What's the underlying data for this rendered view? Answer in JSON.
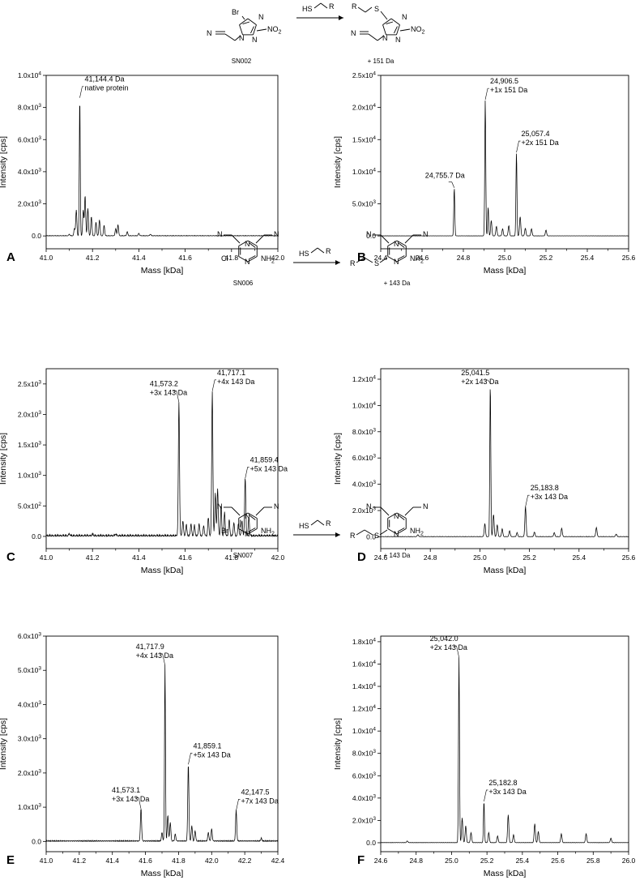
{
  "reagent_label": "HS",
  "r_label": "R",
  "schemes": [
    {
      "compound": "SN002",
      "product_shift": "+ 151 Da",
      "reactant_atoms": [
        "Br",
        "N",
        "N",
        "N",
        "N",
        "NO2"
      ],
      "product_atoms": [
        "R",
        "S",
        "N",
        "N",
        "N",
        "N",
        "NO2"
      ]
    },
    {
      "compound": "SN006",
      "product_shift": "+ 143 Da",
      "reactant_atoms": [
        "N",
        "N",
        "N",
        "N",
        "Cl",
        "NH2"
      ],
      "product_atoms": [
        "N",
        "N",
        "N",
        "N",
        "R",
        "S",
        "NH2"
      ]
    },
    {
      "compound": "SN007",
      "product_shift": "+ 143 Da",
      "reactant_atoms": [
        "N",
        "N",
        "N",
        "N",
        "Br",
        "NH2"
      ],
      "product_atoms": [
        "N",
        "N",
        "N",
        "N",
        "R",
        "S",
        "NH2"
      ]
    }
  ],
  "chart_data": [
    {
      "panel": "A",
      "type": "line",
      "xlabel": "Mass [kDa]",
      "ylabel": "Intensity [cps]",
      "xlim": [
        41.0,
        42.0
      ],
      "ylim": [
        -800,
        10000
      ],
      "xticks": [
        "41.0",
        "41.2",
        "41.4",
        "41.6",
        "41.8",
        "42.0"
      ],
      "yticks": [
        "0.0",
        "2.0x10³",
        "4.0x10³",
        "6.0x10³",
        "8.0x10³",
        "1.0x10⁴"
      ],
      "peaks": [
        [
          41.1,
          90
        ],
        [
          41.122,
          450
        ],
        [
          41.13,
          1600
        ],
        [
          41.145,
          8600
        ],
        [
          41.16,
          1600
        ],
        [
          41.168,
          2500
        ],
        [
          41.18,
          1700
        ],
        [
          41.195,
          1200
        ],
        [
          41.215,
          850
        ],
        [
          41.23,
          1000
        ],
        [
          41.25,
          650
        ],
        [
          41.3,
          450
        ],
        [
          41.31,
          700
        ],
        [
          41.35,
          250
        ],
        [
          41.4,
          150
        ],
        [
          41.45,
          100
        ]
      ],
      "annotations": [
        {
          "lines": [
            "41,144.4 Da",
            "native protein"
          ],
          "x": 41.145,
          "y": 8600
        }
      ]
    },
    {
      "panel": "B",
      "type": "line",
      "xlabel": "Mass [kDa]",
      "ylabel": "Intensity [cps]",
      "xlim": [
        24.4,
        25.6
      ],
      "ylim": [
        -2000,
        25000
      ],
      "xticks": [
        "24.4",
        "24.6",
        "24.8",
        "25.0",
        "25.2",
        "25.4",
        "25.6"
      ],
      "yticks": [
        "0.0",
        "5.0x10³",
        "1.0x10⁴",
        "1.5x10⁴",
        "2.0x10⁴",
        "2.5x10⁴"
      ],
      "peaks": [
        [
          24.756,
          7500
        ],
        [
          24.906,
          21200
        ],
        [
          24.92,
          4500
        ],
        [
          24.935,
          2400
        ],
        [
          24.96,
          1500
        ],
        [
          24.99,
          1100
        ],
        [
          25.02,
          1600
        ],
        [
          25.057,
          13000
        ],
        [
          25.075,
          3000
        ],
        [
          25.1,
          1200
        ],
        [
          25.13,
          1100
        ],
        [
          25.2,
          900
        ]
      ],
      "annotations": [
        {
          "lines": [
            "24,755.7 Da"
          ],
          "x": 24.756,
          "y": 7500
        },
        {
          "lines": [
            "24,906.5",
            "+1x 151 Da"
          ],
          "x": 24.906,
          "y": 21200
        },
        {
          "lines": [
            "25,057.4",
            "+2x 151 Da"
          ],
          "x": 25.057,
          "y": 13000
        }
      ]
    },
    {
      "panel": "C",
      "type": "line",
      "xlabel": "Mass [kDa]",
      "ylabel": "Intensity [cps]",
      "xlim": [
        41.0,
        42.0
      ],
      "ylim": [
        -200,
        2750
      ],
      "xticks": [
        "41.0",
        "41.2",
        "41.4",
        "41.6",
        "41.8",
        "42.0"
      ],
      "yticks": [
        "0.0",
        "5.0x10²",
        "1.0x10³",
        "1.5x10³",
        "2.0x10³",
        "2.5x10³"
      ],
      "peaks": [
        [
          41.1,
          30
        ],
        [
          41.2,
          30
        ],
        [
          41.3,
          30
        ],
        [
          41.573,
          2200
        ],
        [
          41.59,
          250
        ],
        [
          41.605,
          180
        ],
        [
          41.625,
          200
        ],
        [
          41.64,
          170
        ],
        [
          41.66,
          200
        ],
        [
          41.68,
          170
        ],
        [
          41.7,
          300
        ],
        [
          41.717,
          2380
        ],
        [
          41.73,
          700
        ],
        [
          41.74,
          780
        ],
        [
          41.755,
          500
        ],
        [
          41.77,
          380
        ],
        [
          41.79,
          260
        ],
        [
          41.81,
          220
        ],
        [
          41.83,
          200
        ],
        [
          41.845,
          250
        ],
        [
          41.859,
          950
        ],
        [
          41.875,
          300
        ]
      ],
      "annotations": [
        {
          "lines": [
            "41,573.2",
            "+3x 143 Da"
          ],
          "x": 41.573,
          "y": 2200
        },
        {
          "lines": [
            "41,717.1",
            "+4x 143 Da"
          ],
          "x": 41.717,
          "y": 2380
        },
        {
          "lines": [
            "41,859.4",
            "+5x 143 Da"
          ],
          "x": 41.859,
          "y": 950
        }
      ]
    },
    {
      "panel": "D",
      "type": "line",
      "xlabel": "Mass [kDa]",
      "ylabel": "Intensity [cps]",
      "xlim": [
        24.6,
        25.6
      ],
      "ylim": [
        -900,
        12800
      ],
      "xticks": [
        "24.6",
        "24.8",
        "25.0",
        "25.2",
        "25.4",
        "25.6"
      ],
      "yticks": [
        "0.0",
        "2.0x10³",
        "4.0x10³",
        "6.0x10³",
        "8.0x10³",
        "1.0x10⁴",
        "1.2x10⁴"
      ],
      "peaks": [
        [
          24.75,
          150
        ],
        [
          25.02,
          1000
        ],
        [
          25.042,
          11700
        ],
        [
          25.055,
          1700
        ],
        [
          25.07,
          900
        ],
        [
          25.09,
          600
        ],
        [
          25.12,
          450
        ],
        [
          25.15,
          300
        ],
        [
          25.184,
          2300
        ],
        [
          25.22,
          350
        ],
        [
          25.3,
          300
        ],
        [
          25.33,
          650
        ],
        [
          25.47,
          700
        ],
        [
          25.55,
          200
        ]
      ],
      "annotations": [
        {
          "lines": [
            "25,041.5",
            "+2x 143 Da"
          ],
          "x": 25.042,
          "y": 11700
        },
        {
          "lines": [
            "25,183.8",
            "+3x 143 Da"
          ],
          "x": 25.184,
          "y": 2300
        }
      ]
    },
    {
      "panel": "E",
      "type": "line",
      "xlabel": "Mass [kDa]",
      "ylabel": "Intensity [cps]",
      "xlim": [
        41.0,
        42.4
      ],
      "ylim": [
        -300,
        6000
      ],
      "xticks": [
        "41.0",
        "41.2",
        "41.4",
        "41.6",
        "41.8",
        "42.0",
        "42.2",
        "42.4"
      ],
      "yticks": [
        "0.0",
        "1.0x10³",
        "2.0x10³",
        "3.0x10³",
        "4.0x10³",
        "5.0x10³",
        "6.0x10³"
      ],
      "peaks": [
        [
          41.573,
          950
        ],
        [
          41.7,
          250
        ],
        [
          41.718,
          5150
        ],
        [
          41.735,
          750
        ],
        [
          41.75,
          550
        ],
        [
          41.78,
          200
        ],
        [
          41.859,
          2250
        ],
        [
          41.88,
          450
        ],
        [
          41.9,
          300
        ],
        [
          41.98,
          250
        ],
        [
          42.0,
          350
        ],
        [
          42.148,
          900
        ],
        [
          42.3,
          80
        ]
      ],
      "annotations": [
        {
          "lines": [
            "41,573.1",
            "+3x 143 Da"
          ],
          "x": 41.573,
          "y": 950
        },
        {
          "lines": [
            "41,717.9",
            "+4x 143 Da"
          ],
          "x": 41.718,
          "y": 5150
        },
        {
          "lines": [
            "41,859.1",
            "+5x 143 Da"
          ],
          "x": 41.859,
          "y": 2250
        },
        {
          "lines": [
            "42,147.5",
            "+7x 143 Da"
          ],
          "x": 42.148,
          "y": 900
        }
      ]
    },
    {
      "panel": "F",
      "type": "line",
      "xlabel": "Mass [kDa]",
      "ylabel": "Intensity [cps]",
      "xlim": [
        24.6,
        26.0
      ],
      "ylim": [
        -800,
        18500
      ],
      "xticks": [
        "24.6",
        "24.8",
        "25.0",
        "25.2",
        "25.4",
        "25.6",
        "25.8",
        "26.0"
      ],
      "yticks": [
        "0.0",
        "2.0x10³",
        "4.0x10³",
        "6.0x10³",
        "8.0x10³",
        "1.0x10⁴",
        "1.2x10⁴",
        "1.4x10⁴",
        "1.6x10⁴",
        "1.8x10⁴"
      ],
      "peaks": [
        [
          24.75,
          150
        ],
        [
          25.042,
          16600
        ],
        [
          25.06,
          2200
        ],
        [
          25.08,
          1500
        ],
        [
          25.11,
          900
        ],
        [
          25.183,
          3700
        ],
        [
          25.21,
          900
        ],
        [
          25.26,
          600
        ],
        [
          25.32,
          2500
        ],
        [
          25.35,
          700
        ],
        [
          25.47,
          1700
        ],
        [
          25.49,
          1000
        ],
        [
          25.62,
          800
        ],
        [
          25.76,
          800
        ],
        [
          25.9,
          400
        ]
      ],
      "annotations": [
        {
          "lines": [
            "25,042.0",
            "+2x 143 Da"
          ],
          "x": 25.042,
          "y": 16600
        },
        {
          "lines": [
            "25,182.8",
            "+3x 143 Da"
          ],
          "x": 25.183,
          "y": 3700
        }
      ]
    }
  ]
}
